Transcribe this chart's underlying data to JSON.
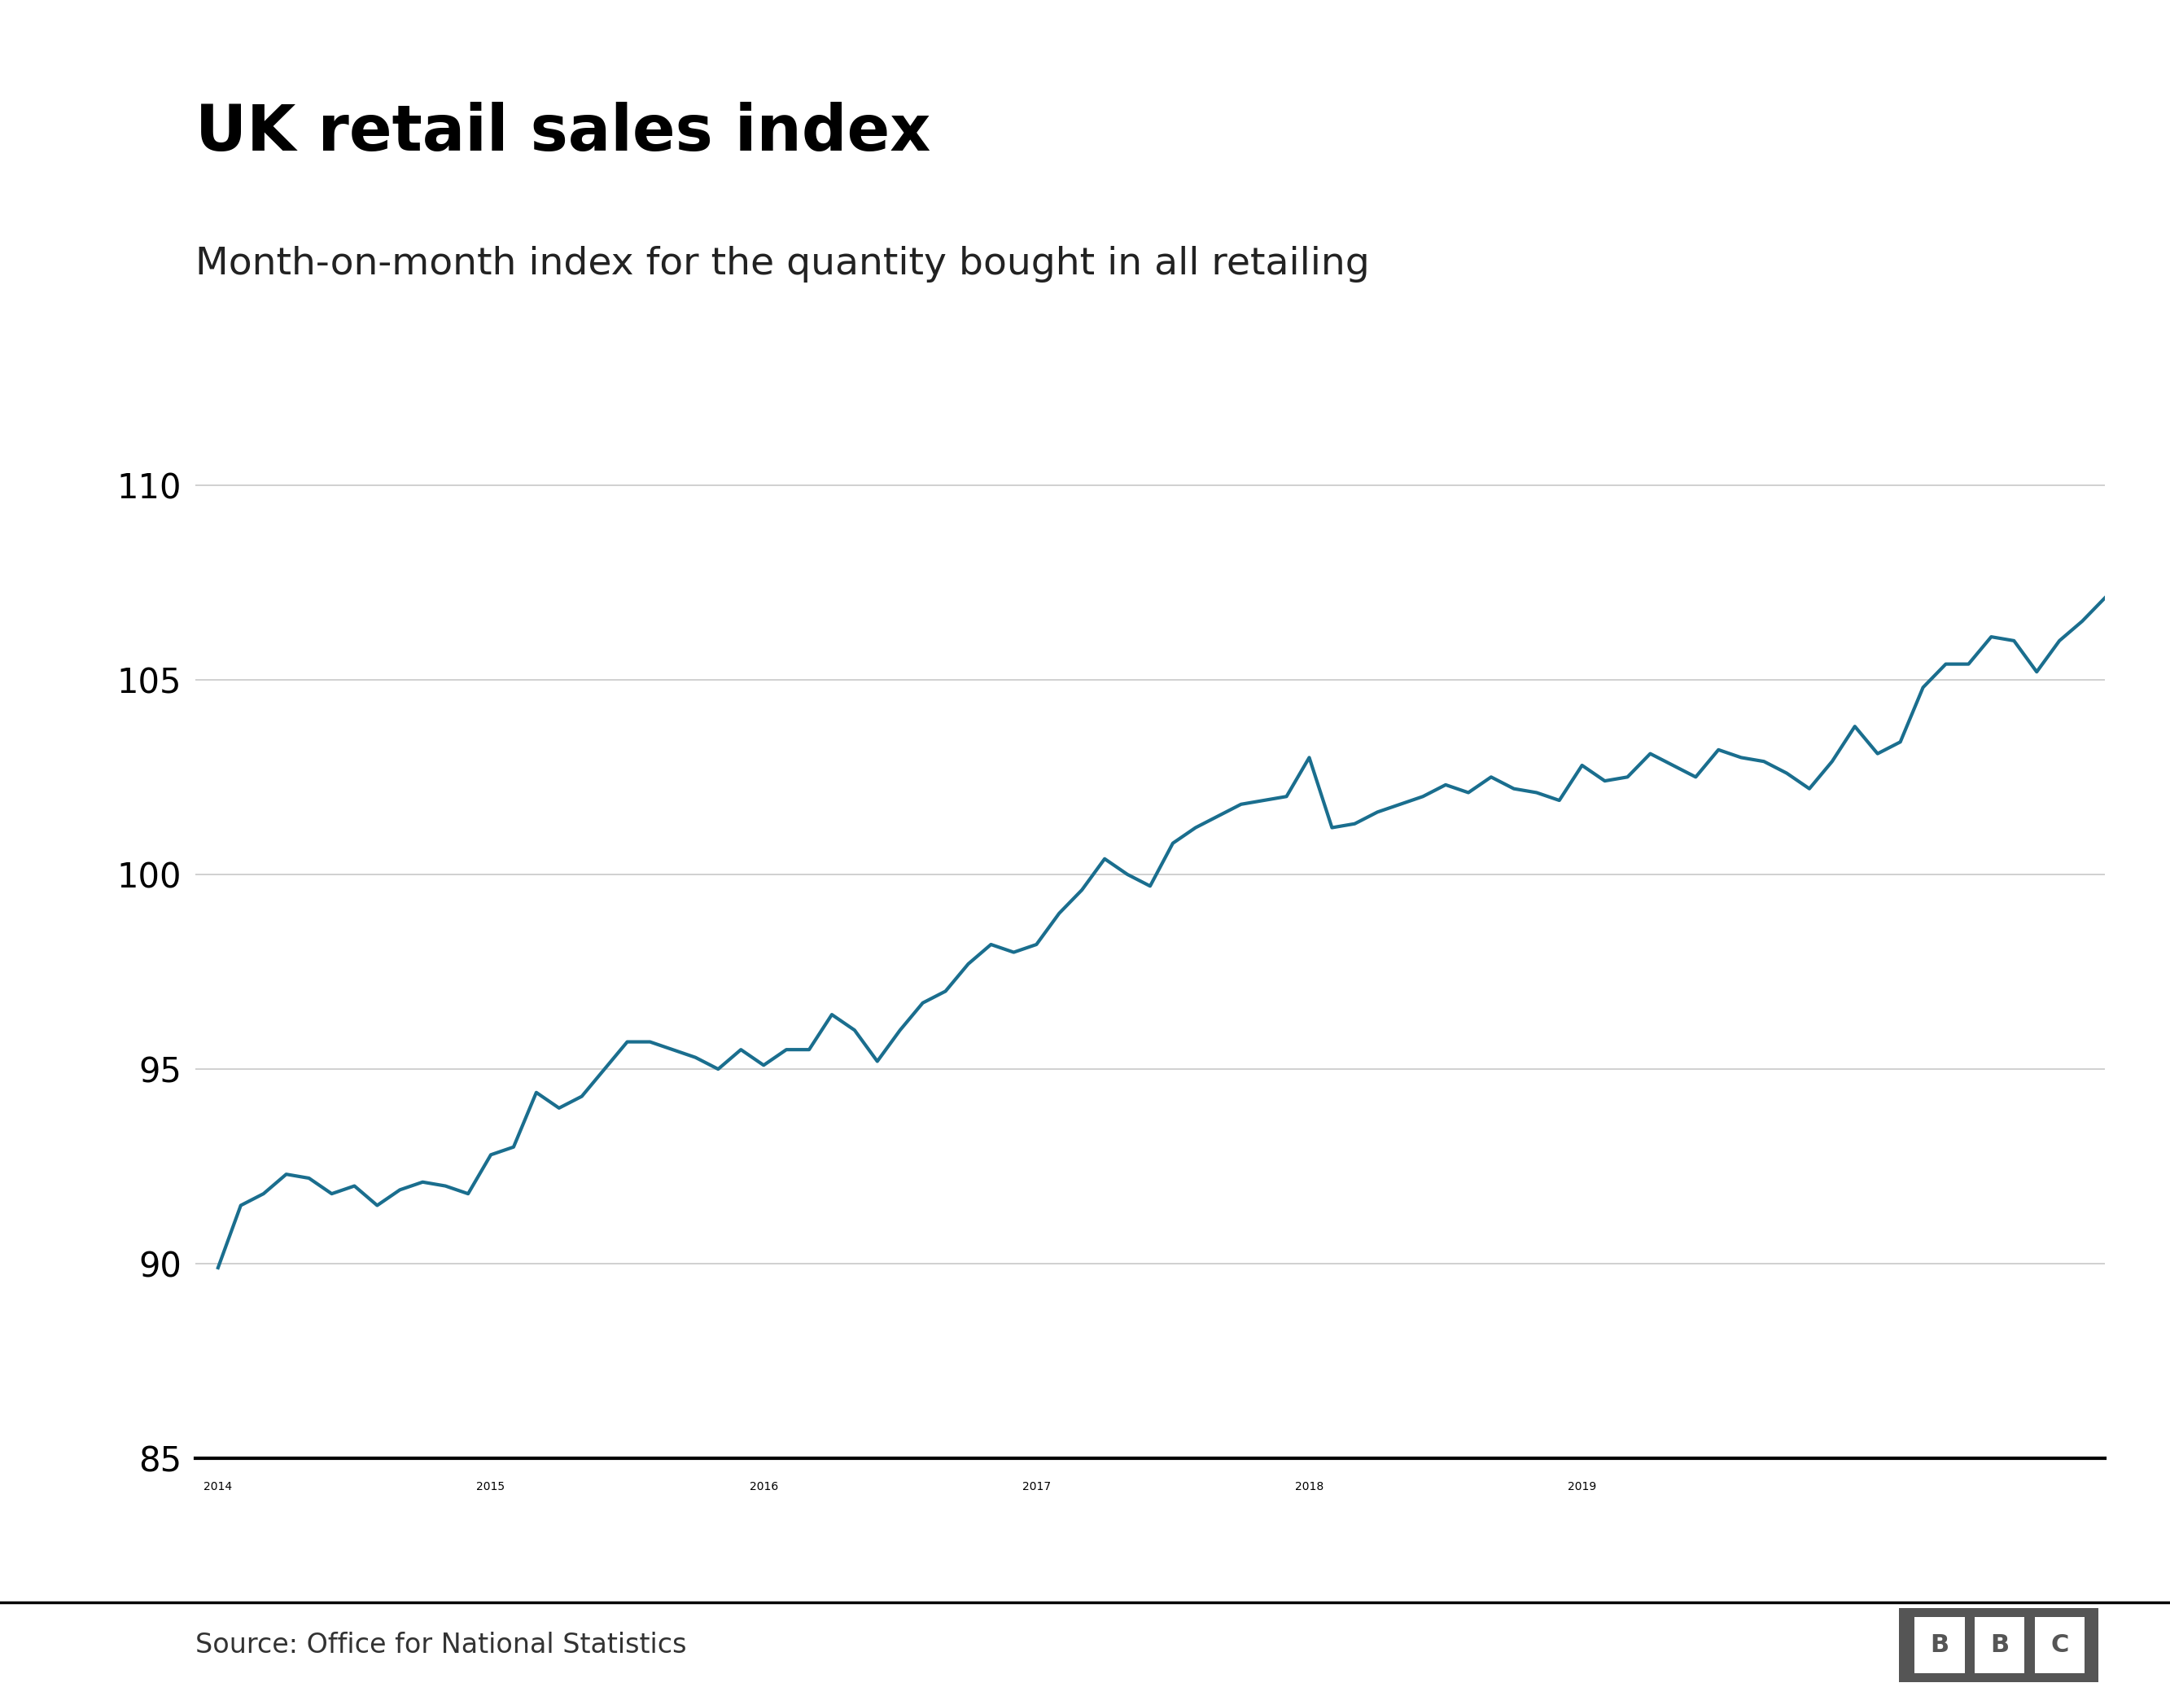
{
  "title": "UK retail sales index",
  "subtitle": "Month-on-month index for the quantity bought in all retailing",
  "source": "Source: Office for National Statistics",
  "line_color": "#1a6e8e",
  "background_color": "#ffffff",
  "ylim": [
    85,
    112
  ],
  "yticks": [
    85,
    90,
    95,
    100,
    105,
    110
  ],
  "title_fontsize": 56,
  "subtitle_fontsize": 34,
  "tick_fontsize": 30,
  "source_fontsize": 24,
  "line_width": 3.0,
  "values": [
    89.9,
    91.5,
    91.8,
    92.3,
    92.2,
    91.8,
    92.0,
    91.5,
    91.9,
    92.1,
    92.0,
    91.8,
    92.8,
    93.0,
    94.4,
    94.0,
    94.3,
    95.0,
    95.7,
    95.7,
    95.5,
    95.3,
    95.0,
    95.5,
    95.1,
    95.5,
    95.5,
    96.4,
    96.0,
    95.2,
    96.0,
    96.7,
    97.0,
    97.7,
    98.2,
    98.0,
    98.2,
    99.0,
    99.6,
    100.4,
    100.0,
    99.7,
    100.8,
    101.2,
    101.5,
    101.8,
    101.9,
    102.0,
    103.0,
    101.2,
    101.3,
    101.6,
    101.8,
    102.0,
    102.3,
    102.1,
    102.5,
    102.2,
    102.1,
    101.9,
    102.8,
    102.4,
    102.5,
    103.1,
    102.8,
    102.5,
    103.2,
    103.0,
    102.9,
    102.6,
    102.2,
    102.9,
    103.8,
    103.1,
    103.4,
    104.8,
    105.4,
    105.4,
    106.1,
    106.0,
    105.2,
    106.0,
    106.5,
    107.1
  ],
  "x_year_ticks": [
    0,
    12,
    24,
    36,
    48,
    60
  ],
  "x_year_labels": [
    "2014",
    "2015",
    "2016",
    "2017",
    "2018",
    "2019"
  ],
  "grid_color": "#c8c8c8",
  "bottom_line_color": "#000000",
  "bbc_bg_color": "#555555",
  "bbc_text_color": "#ffffff"
}
